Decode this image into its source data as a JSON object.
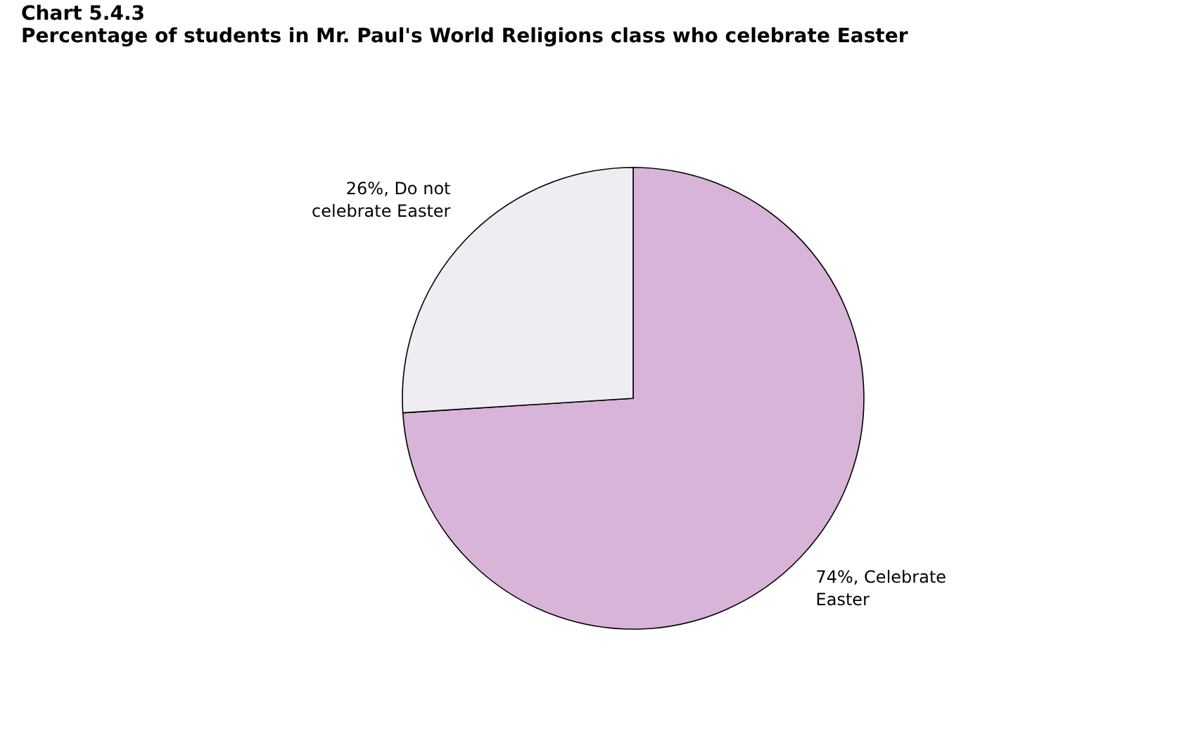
{
  "chart_data": {
    "type": "pie",
    "title": "Chart 5.4.3",
    "subtitle": "Percentage of students in Mr. Paul's World Religions class who celebrate Easter",
    "categories": [
      "Celebrate Easter",
      "Do not celebrate Easter"
    ],
    "values": [
      74,
      26
    ],
    "colors": [
      "#d8b4d8",
      "#efedf3"
    ],
    "value_labels": [
      "74%,",
      "26%,"
    ]
  }
}
